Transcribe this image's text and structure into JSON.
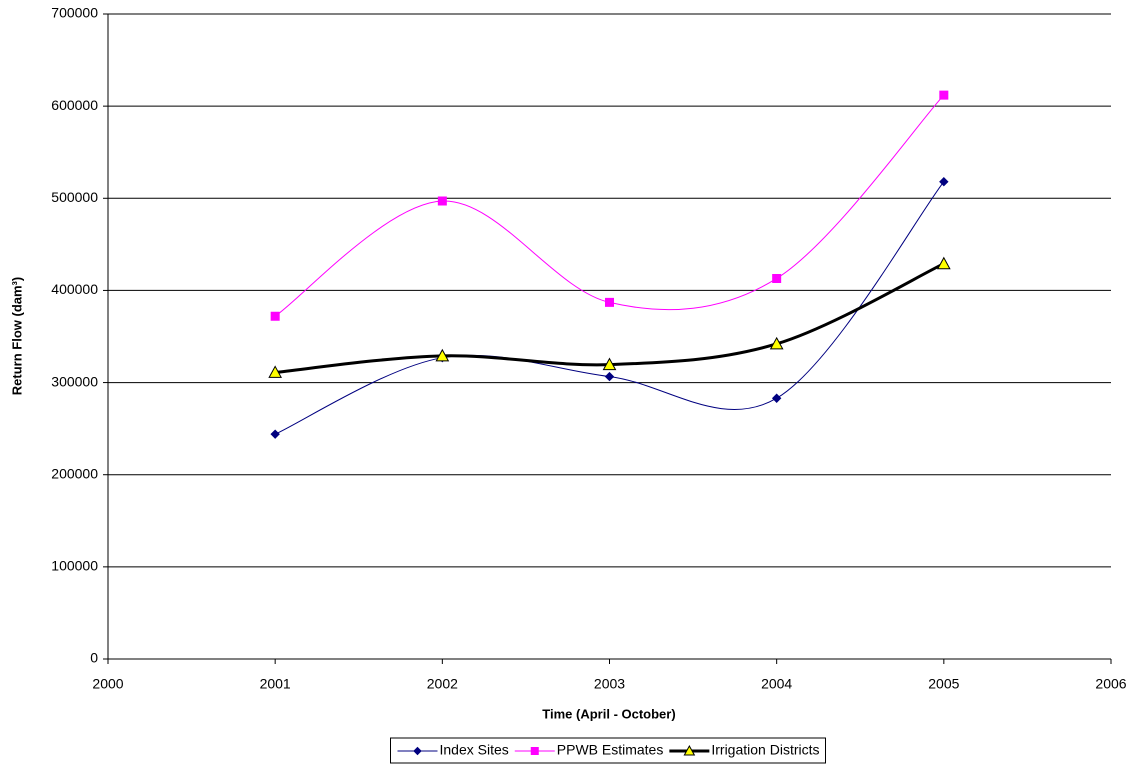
{
  "chart_data": {
    "type": "line",
    "x_label": "Time (April - October)",
    "y_label": "Return Flow (dam³)",
    "x": [
      2001,
      2002,
      2003,
      2004,
      2005
    ],
    "series": [
      {
        "name": "Index Sites",
        "color": "#000080",
        "marker": "diamond",
        "marker_fill": "#000080",
        "line_width": 1,
        "values": [
          244000,
          327000,
          306500,
          283000,
          518000
        ]
      },
      {
        "name": "PPWB Estimates",
        "color": "#ff00ff",
        "marker": "square",
        "marker_fill": "#ff00ff",
        "line_width": 1,
        "values": [
          372000,
          497000,
          387000,
          413000,
          612000
        ]
      },
      {
        "name": "Irrigation Districts",
        "color": "#000000",
        "marker": "triangle",
        "marker_fill": "#ffff00",
        "line_width": 3,
        "values": [
          311000,
          329000,
          319500,
          342000,
          429000
        ]
      }
    ],
    "xlim": [
      2000,
      2006
    ],
    "xticks": [
      2000,
      2001,
      2002,
      2003,
      2004,
      2005,
      2006
    ],
    "ylim": [
      0,
      700000
    ],
    "yticks": [
      0,
      100000,
      200000,
      300000,
      400000,
      500000,
      600000,
      700000
    ],
    "grid": true,
    "smooth": true,
    "legend": "bottom"
  }
}
